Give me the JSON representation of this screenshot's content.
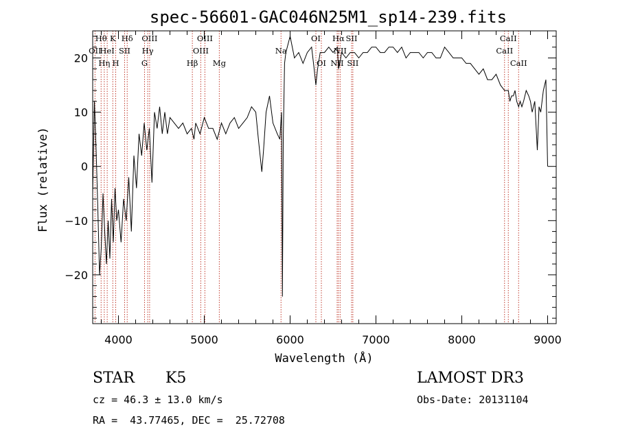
{
  "chart_data": {
    "type": "line",
    "title": "spec-56601-GAC046N25M1_sp14-239.fits",
    "xlabel": "Wavelength (Å)",
    "ylabel": "Flux (relative)",
    "xlim": [
      3700,
      9100
    ],
    "ylim": [
      -29,
      25
    ],
    "xticks": [
      4000,
      5000,
      6000,
      7000,
      8000,
      9000
    ],
    "yticks": [
      -20,
      -10,
      0,
      10,
      20
    ],
    "ytick_labels": [
      "−20",
      "−10",
      "0",
      "10",
      "20"
    ],
    "grid": false,
    "series": [
      {
        "color": "#000000",
        "x": [
          3700,
          3720,
          3740,
          3760,
          3780,
          3800,
          3820,
          3840,
          3860,
          3880,
          3900,
          3920,
          3940,
          3960,
          3980,
          4000,
          4030,
          4060,
          4090,
          4120,
          4150,
          4180,
          4210,
          4240,
          4270,
          4300,
          4330,
          4360,
          4390,
          4420,
          4450,
          4480,
          4510,
          4540,
          4570,
          4600,
          4650,
          4700,
          4750,
          4800,
          4850,
          4880,
          4900,
          4950,
          5000,
          5050,
          5100,
          5150,
          5200,
          5250,
          5300,
          5350,
          5400,
          5450,
          5500,
          5550,
          5600,
          5630,
          5650,
          5670,
          5690,
          5720,
          5760,
          5800,
          5850,
          5880,
          5900,
          5910,
          5920,
          5935,
          5950,
          6000,
          6050,
          6100,
          6150,
          6200,
          6250,
          6280,
          6300,
          6320,
          6350,
          6400,
          6450,
          6500,
          6550,
          6563,
          6580,
          6600,
          6650,
          6700,
          6750,
          6800,
          6850,
          6900,
          6950,
          7000,
          7050,
          7100,
          7150,
          7200,
          7250,
          7300,
          7350,
          7400,
          7450,
          7500,
          7550,
          7600,
          7650,
          7700,
          7750,
          7800,
          7850,
          7900,
          7950,
          8000,
          8050,
          8100,
          8150,
          8200,
          8250,
          8300,
          8350,
          8400,
          8450,
          8498,
          8520,
          8542,
          8560,
          8580,
          8600,
          8620,
          8640,
          8662,
          8680,
          8700,
          8720,
          8750,
          8780,
          8800,
          8820,
          8850,
          8880,
          8900,
          8920,
          8950,
          8980,
          9000
        ],
        "y": [
          -5,
          12,
          3,
          -8,
          -20,
          -15,
          -5,
          -12,
          -18,
          -10,
          -17,
          -6,
          -14,
          -4,
          -10,
          -8,
          -14,
          -6,
          -10,
          -2,
          -12,
          2,
          -4,
          6,
          2,
          8,
          3,
          7,
          -3,
          10,
          7,
          11,
          6,
          10,
          6,
          9,
          8,
          7,
          8,
          6,
          7,
          5,
          8,
          6,
          9,
          7,
          7,
          5,
          8,
          6,
          8,
          9,
          7,
          8,
          9,
          11,
          10,
          5,
          2,
          -1,
          3,
          10,
          13,
          8,
          6,
          5,
          10,
          -24,
          5,
          19,
          21,
          24,
          20,
          21,
          19,
          21,
          22,
          18,
          15,
          18,
          21,
          21,
          22,
          21,
          22,
          18,
          19,
          21,
          20,
          21,
          21,
          20,
          21,
          21,
          22,
          22,
          21,
          21,
          22,
          22,
          21,
          22,
          20,
          21,
          21,
          21,
          20,
          21,
          21,
          20,
          20,
          22,
          21,
          20,
          20,
          20,
          19,
          19,
          18,
          17,
          18,
          16,
          16,
          17,
          15,
          14,
          14,
          14,
          12,
          13,
          13,
          14,
          12,
          11,
          12,
          11,
          12,
          14,
          13,
          12,
          10,
          12,
          3,
          11,
          10,
          14,
          16,
          0
        ]
      }
    ],
    "lines": [
      {
        "wave": 3727,
        "label": "OII",
        "row": 1
      },
      {
        "wave": 3798,
        "label": "Hθ",
        "row": 0
      },
      {
        "wave": 3835,
        "label": "Hη",
        "row": 2
      },
      {
        "wave": 3869,
        "label": "HeI",
        "row": 1
      },
      {
        "wave": 3934,
        "label": "K",
        "row": 0
      },
      {
        "wave": 3968,
        "label": "H",
        "row": 2
      },
      {
        "wave": 4072,
        "label": "SII",
        "row": 1
      },
      {
        "wave": 4102,
        "label": "Hδ",
        "row": 0
      },
      {
        "wave": 4304,
        "label": "G",
        "row": 2
      },
      {
        "wave": 4341,
        "label": "Hγ",
        "row": 1
      },
      {
        "wave": 4363,
        "label": "OIII",
        "row": 0
      },
      {
        "wave": 4861,
        "label": "Hβ",
        "row": 2
      },
      {
        "wave": 4959,
        "label": "OIII",
        "row": 1
      },
      {
        "wave": 5007,
        "label": "OIII",
        "row": 0
      },
      {
        "wave": 5175,
        "label": "Mg",
        "row": 2
      },
      {
        "wave": 5894,
        "label": "Na",
        "row": 1
      },
      {
        "wave": 6300,
        "label": "OI",
        "row": 0
      },
      {
        "wave": 6364,
        "label": "OI",
        "row": 2
      },
      {
        "wave": 6548,
        "label": "NII",
        "row": 2
      },
      {
        "wave": 6563,
        "label": "Hα",
        "row": 0
      },
      {
        "wave": 6583,
        "label": "NII",
        "row": 1
      },
      {
        "wave": 6716,
        "label": "SII",
        "row": 0
      },
      {
        "wave": 6731,
        "label": "SII",
        "row": 2
      },
      {
        "wave": 8498,
        "label": "CaII",
        "row": 1
      },
      {
        "wave": 8542,
        "label": "CaII",
        "row": 0
      },
      {
        "wave": 8662,
        "label": "CaII",
        "row": 2
      }
    ]
  },
  "info": {
    "class_label": "STAR",
    "subclass": "K5",
    "survey": "LAMOST DR3",
    "cz": "cz = 46.3 ± 13.0 km/s",
    "obs_date": "Obs-Date: 20131104",
    "coords": "RA =  43.77465, DEC =  25.72708"
  }
}
